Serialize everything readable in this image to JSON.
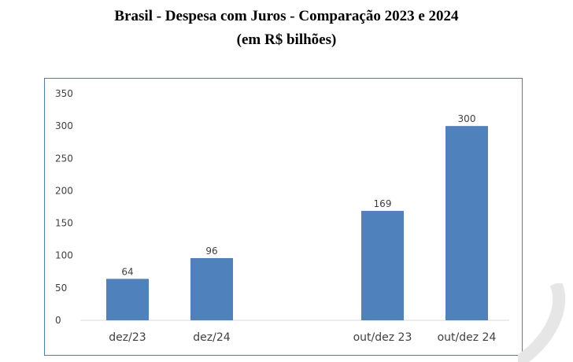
{
  "title": "Brasil - Despesa com Juros - Comparação 2023 e 2024",
  "subtitle": "(em R$ bilhões)",
  "chart_data": {
    "type": "bar",
    "title": "Brasil - Despesa com Juros - Comparação 2023 e 2024",
    "subtitle": "(em R$ bilhões)",
    "categories": [
      "dez/23",
      "dez/24",
      "out/dez 23",
      "out/dez 24"
    ],
    "values": [
      64,
      96,
      169,
      300
    ],
    "data_labels": [
      "64",
      "96",
      "169",
      "300"
    ],
    "ylim": [
      0,
      350
    ],
    "yticks": [
      0,
      50,
      100,
      150,
      200,
      250,
      300,
      350
    ],
    "grid": false,
    "legend": "none",
    "bar_color": "#4f81bd"
  }
}
